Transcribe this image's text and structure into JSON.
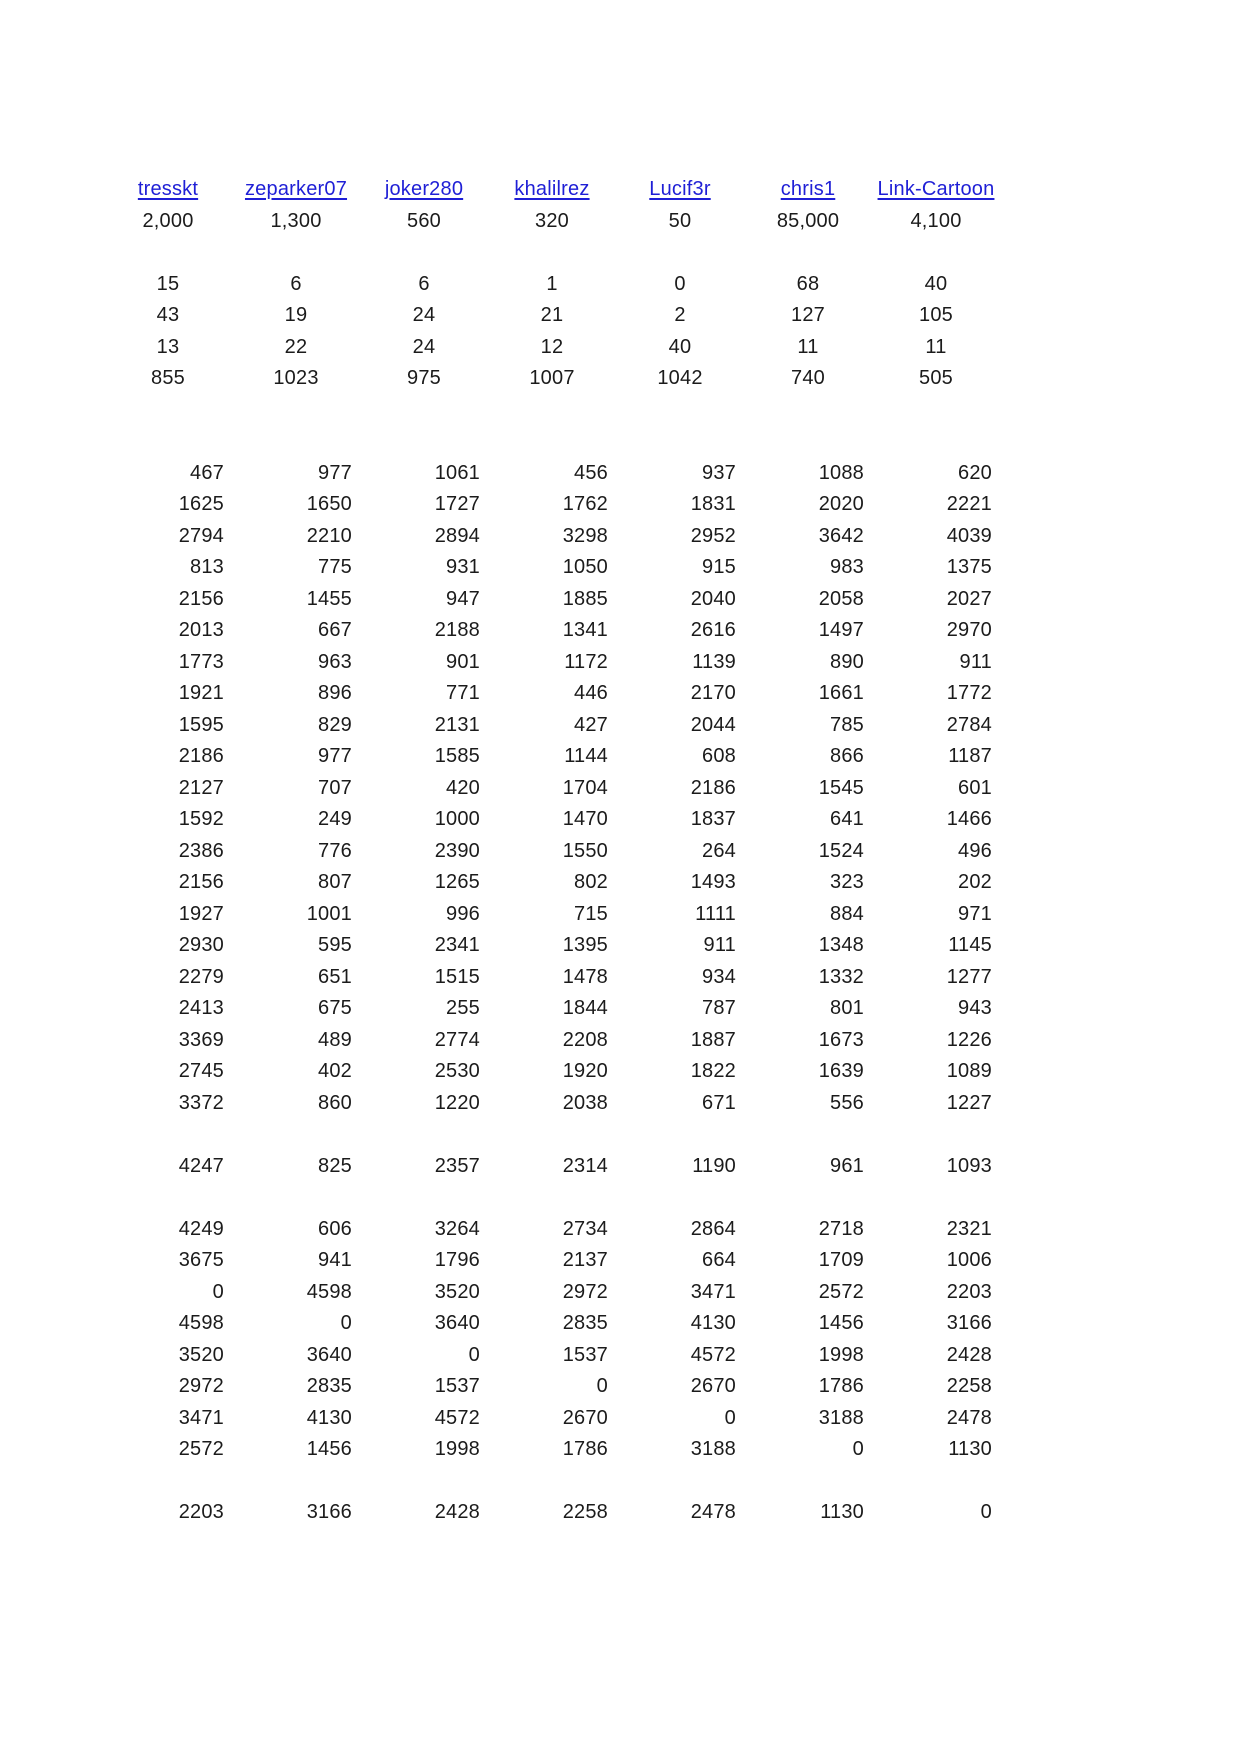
{
  "page": {
    "background_color": "#ffffff",
    "text_color": "#1b1b1b",
    "link_color": "#1f1fd6"
  },
  "table": {
    "column_count": 7,
    "header_links": [
      "tresskt",
      "zeparker07",
      "joker280",
      "khalilrez",
      "Lucif3r",
      "chris1",
      "Link-Cartoon"
    ],
    "rows": [
      {
        "type": "links",
        "cells": [
          "tresskt",
          "zeparker07",
          "joker280",
          "khalilrez",
          "Lucif3r",
          "chris1",
          "Link-Cartoon"
        ]
      },
      {
        "type": "center",
        "cells": [
          "2,000",
          "1,300",
          "560",
          "320",
          "50",
          "85,000",
          "4,100"
        ]
      },
      {
        "type": "blank"
      },
      {
        "type": "center",
        "cells": [
          "15",
          "6",
          "6",
          "1",
          "0",
          "68",
          "40"
        ]
      },
      {
        "type": "center",
        "cells": [
          "43",
          "19",
          "24",
          "21",
          "2",
          "127",
          "105"
        ]
      },
      {
        "type": "center",
        "cells": [
          "13",
          "22",
          "24",
          "12",
          "40",
          "11",
          "11"
        ]
      },
      {
        "type": "center",
        "cells": [
          "855",
          "1023",
          "975",
          "1007",
          "1042",
          "740",
          "505"
        ]
      },
      {
        "type": "blank"
      },
      {
        "type": "blank"
      },
      {
        "type": "right",
        "cells": [
          "467",
          "977",
          "1061",
          "456",
          "937",
          "1088",
          "620"
        ]
      },
      {
        "type": "right",
        "cells": [
          "1625",
          "1650",
          "1727",
          "1762",
          "1831",
          "2020",
          "2221"
        ]
      },
      {
        "type": "right",
        "cells": [
          "2794",
          "2210",
          "2894",
          "3298",
          "2952",
          "3642",
          "4039"
        ]
      },
      {
        "type": "right",
        "cells": [
          "813",
          "775",
          "931",
          "1050",
          "915",
          "983",
          "1375"
        ]
      },
      {
        "type": "right",
        "cells": [
          "2156",
          "1455",
          "947",
          "1885",
          "2040",
          "2058",
          "2027"
        ]
      },
      {
        "type": "right",
        "cells": [
          "2013",
          "667",
          "2188",
          "1341",
          "2616",
          "1497",
          "2970"
        ]
      },
      {
        "type": "right",
        "cells": [
          "1773",
          "963",
          "901",
          "1172",
          "1139",
          "890",
          "911"
        ]
      },
      {
        "type": "right",
        "cells": [
          "1921",
          "896",
          "771",
          "446",
          "2170",
          "1661",
          "1772"
        ]
      },
      {
        "type": "right",
        "cells": [
          "1595",
          "829",
          "2131",
          "427",
          "2044",
          "785",
          "2784"
        ]
      },
      {
        "type": "right",
        "cells": [
          "2186",
          "977",
          "1585",
          "1144",
          "608",
          "866",
          "1187"
        ]
      },
      {
        "type": "right",
        "cells": [
          "2127",
          "707",
          "420",
          "1704",
          "2186",
          "1545",
          "601"
        ]
      },
      {
        "type": "right",
        "cells": [
          "1592",
          "249",
          "1000",
          "1470",
          "1837",
          "641",
          "1466"
        ]
      },
      {
        "type": "right",
        "cells": [
          "2386",
          "776",
          "2390",
          "1550",
          "264",
          "1524",
          "496"
        ]
      },
      {
        "type": "right",
        "cells": [
          "2156",
          "807",
          "1265",
          "802",
          "1493",
          "323",
          "202"
        ]
      },
      {
        "type": "right",
        "cells": [
          "1927",
          "1001",
          "996",
          "715",
          "1111",
          "884",
          "971"
        ]
      },
      {
        "type": "right",
        "cells": [
          "2930",
          "595",
          "2341",
          "1395",
          "911",
          "1348",
          "1145"
        ]
      },
      {
        "type": "right",
        "cells": [
          "2279",
          "651",
          "1515",
          "1478",
          "934",
          "1332",
          "1277"
        ]
      },
      {
        "type": "right",
        "cells": [
          "2413",
          "675",
          "255",
          "1844",
          "787",
          "801",
          "943"
        ]
      },
      {
        "type": "right",
        "cells": [
          "3369",
          "489",
          "2774",
          "2208",
          "1887",
          "1673",
          "1226"
        ]
      },
      {
        "type": "right",
        "cells": [
          "2745",
          "402",
          "2530",
          "1920",
          "1822",
          "1639",
          "1089"
        ]
      },
      {
        "type": "right",
        "cells": [
          "3372",
          "860",
          "1220",
          "2038",
          "671",
          "556",
          "1227"
        ]
      },
      {
        "type": "blank"
      },
      {
        "type": "right",
        "cells": [
          "4247",
          "825",
          "2357",
          "2314",
          "1190",
          "961",
          "1093"
        ]
      },
      {
        "type": "blank"
      },
      {
        "type": "right",
        "cells": [
          "4249",
          "606",
          "3264",
          "2734",
          "2864",
          "2718",
          "2321"
        ]
      },
      {
        "type": "right",
        "cells": [
          "3675",
          "941",
          "1796",
          "2137",
          "664",
          "1709",
          "1006"
        ]
      },
      {
        "type": "right",
        "cells": [
          "0",
          "4598",
          "3520",
          "2972",
          "3471",
          "2572",
          "2203"
        ]
      },
      {
        "type": "right",
        "cells": [
          "4598",
          "0",
          "3640",
          "2835",
          "4130",
          "1456",
          "3166"
        ]
      },
      {
        "type": "right",
        "cells": [
          "3520",
          "3640",
          "0",
          "1537",
          "4572",
          "1998",
          "2428"
        ]
      },
      {
        "type": "right",
        "cells": [
          "2972",
          "2835",
          "1537",
          "0",
          "2670",
          "1786",
          "2258"
        ]
      },
      {
        "type": "right",
        "cells": [
          "3471",
          "4130",
          "4572",
          "2670",
          "0",
          "3188",
          "2478"
        ]
      },
      {
        "type": "right",
        "cells": [
          "2572",
          "1456",
          "1998",
          "1786",
          "3188",
          "0",
          "1130"
        ]
      },
      {
        "type": "blank"
      },
      {
        "type": "right",
        "cells": [
          "2203",
          "3166",
          "2428",
          "2258",
          "2478",
          "1130",
          "0"
        ]
      }
    ]
  }
}
